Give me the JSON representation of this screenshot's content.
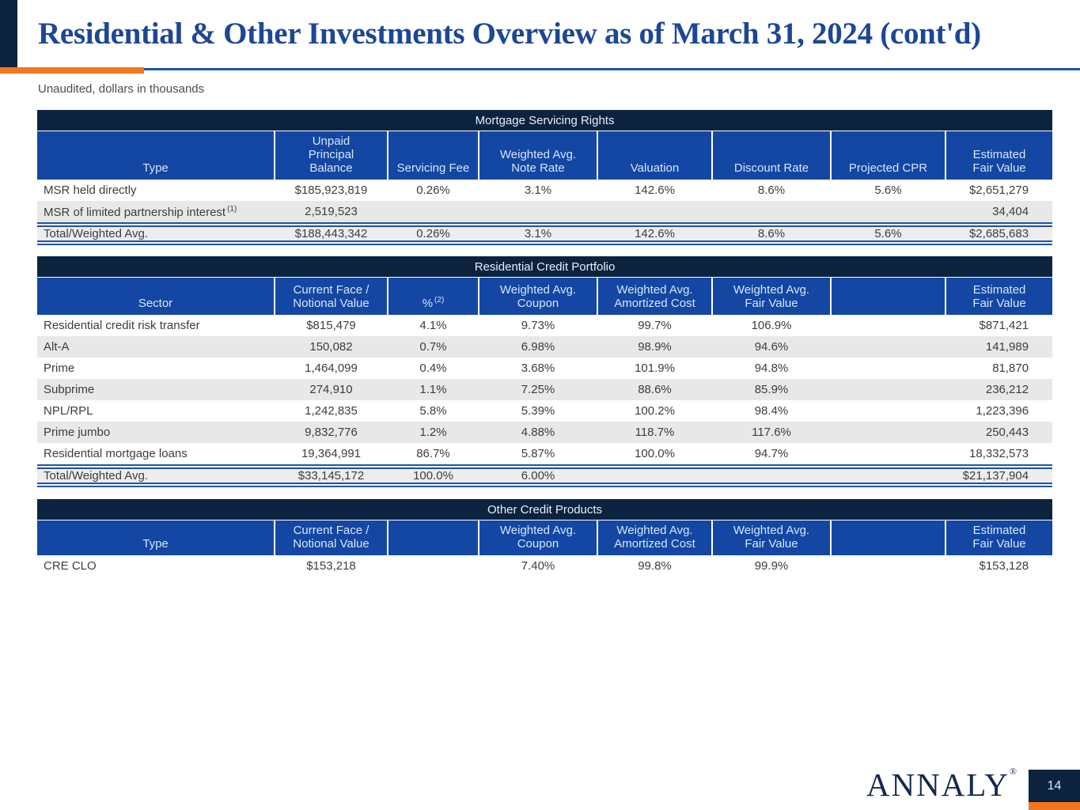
{
  "page": {
    "title": "Residential & Other Investments Overview as of March 31, 2024 (cont'd)",
    "subtitle": "Unaudited, dollars in thousands",
    "page_number": "14",
    "logo_text": "ANNALY",
    "logo_reg": "®"
  },
  "colors": {
    "navy": "#0c2340",
    "header_blue": "#1347a3",
    "title_blue": "#1d4795",
    "orange": "#f3761f",
    "alt_row": "#e8e8e8",
    "total_row": "#eeedeb",
    "rule_blue": "#1d55a5"
  },
  "tables": [
    {
      "name": "mortgage-servicing-rights",
      "band_title": "Mortgage Servicing Rights",
      "columns": [
        {
          "label": "Type"
        },
        {
          "label": "Unpaid\nPrincipal\nBalance"
        },
        {
          "label": "Servicing Fee"
        },
        {
          "label": "Weighted Avg.\nNote Rate"
        },
        {
          "label": "Valuation"
        },
        {
          "label": "Discount Rate"
        },
        {
          "label": "Projected CPR"
        },
        {
          "label": "Estimated\nFair Value"
        }
      ],
      "rows": [
        [
          "MSR held directly",
          "$185,923,819",
          "0.26%",
          "3.1%",
          "142.6%",
          "8.6%",
          "5.6%",
          "$2,651,279"
        ],
        [
          {
            "t": "MSR of limited partnership interest",
            "sup": "(1)"
          },
          "2,519,523",
          "",
          "",
          "",
          "",
          "",
          "34,404"
        ]
      ],
      "total_row": [
        "Total/Weighted Avg.",
        "$188,443,342",
        "0.26%",
        "3.1%",
        "142.6%",
        "8.6%",
        "5.6%",
        "$2,685,683"
      ]
    },
    {
      "name": "residential-credit-portfolio",
      "band_title": "Residential Credit Portfolio",
      "columns": [
        {
          "label": "Sector"
        },
        {
          "label": "Current Face /\nNotional Value"
        },
        {
          "label": "%",
          "sup": "(2)"
        },
        {
          "label": "Weighted Avg.\nCoupon"
        },
        {
          "label": "Weighted Avg.\nAmortized Cost"
        },
        {
          "label": "Weighted Avg.\nFair Value"
        },
        {
          "label": ""
        },
        {
          "label": "Estimated\nFair Value"
        }
      ],
      "rows": [
        [
          "Residential credit risk transfer",
          "$815,479",
          "4.1%",
          "9.73%",
          "99.7%",
          "106.9%",
          "",
          "$871,421"
        ],
        [
          "Alt-A",
          "150,082",
          "0.7%",
          "6.98%",
          "98.9%",
          "94.6%",
          "",
          "141,989"
        ],
        [
          "Prime",
          "1,464,099",
          "0.4%",
          "3.68%",
          "101.9%",
          "94.8%",
          "",
          "81,870"
        ],
        [
          "Subprime",
          "274,910",
          "1.1%",
          "7.25%",
          "88.6%",
          "85.9%",
          "",
          "236,212"
        ],
        [
          "NPL/RPL",
          "1,242,835",
          "5.8%",
          "5.39%",
          "100.2%",
          "98.4%",
          "",
          "1,223,396"
        ],
        [
          "Prime jumbo",
          "9,832,776",
          "1.2%",
          "4.88%",
          "118.7%",
          "117.6%",
          "",
          "250,443"
        ],
        [
          "Residential mortgage loans",
          "19,364,991",
          "86.7%",
          "5.87%",
          "100.0%",
          "94.7%",
          "",
          "18,332,573"
        ]
      ],
      "total_row": [
        "Total/Weighted Avg.",
        "$33,145,172",
        "100.0%",
        "6.00%",
        "",
        "",
        "",
        "$21,137,904"
      ]
    },
    {
      "name": "other-credit-products",
      "band_title": "Other Credit Products",
      "columns": [
        {
          "label": "Type"
        },
        {
          "label": "Current Face /\nNotional Value"
        },
        {
          "label": ""
        },
        {
          "label": "Weighted Avg.\nCoupon"
        },
        {
          "label": "Weighted Avg.\nAmortized Cost"
        },
        {
          "label": "Weighted Avg.\nFair Value"
        },
        {
          "label": ""
        },
        {
          "label": "Estimated\nFair Value"
        }
      ],
      "rows": [
        [
          "CRE CLO",
          "$153,218",
          "",
          "7.40%",
          "99.8%",
          "99.9%",
          "",
          "$153,128"
        ]
      ],
      "total_row": null
    }
  ]
}
